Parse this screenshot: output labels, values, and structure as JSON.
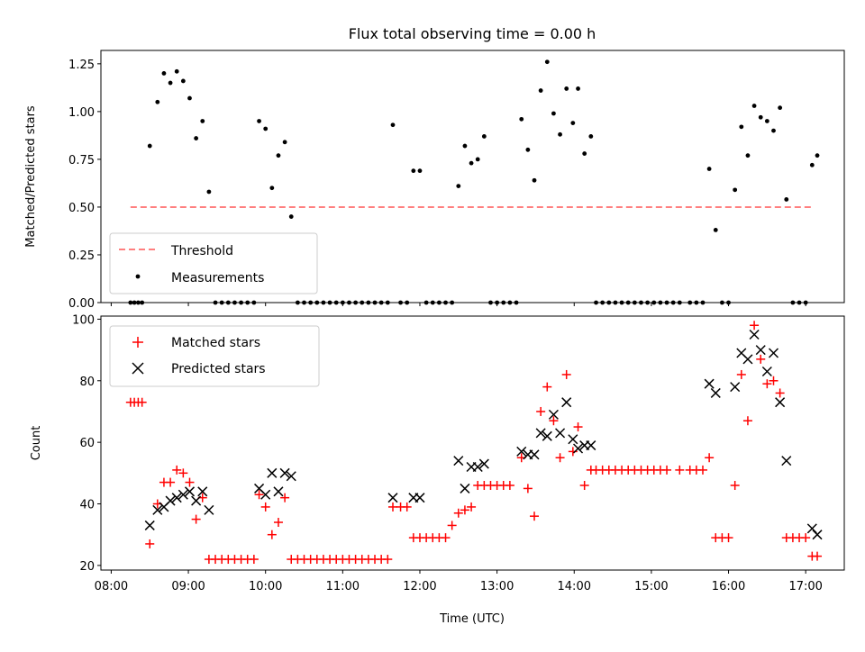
{
  "chart_data": [
    {
      "type": "scatter",
      "title": "Flux total observing time = 0.00 h",
      "xlabel": "",
      "ylabel": "Matched/Predicted stars",
      "xlim": [
        "07:52",
        "17:30"
      ],
      "ylim": [
        0,
        1.32
      ],
      "yticks": [
        "0.00",
        "0.25",
        "0.50",
        "0.75",
        "1.00",
        "1.25"
      ],
      "grid": false,
      "legend": "lower-left",
      "threshold": {
        "name": "Threshold",
        "value": 0.5,
        "x_start": "08:15",
        "x_end": "17:05",
        "color": "#ff7f7f"
      },
      "series": [
        {
          "name": "Measurements",
          "color": "#000000",
          "points": [
            [
              "08:15",
              0
            ],
            [
              "08:18",
              0
            ],
            [
              "08:21",
              0
            ],
            [
              "08:24",
              0
            ],
            [
              "08:30",
              0.82
            ],
            [
              "08:36",
              1.05
            ],
            [
              "08:41",
              1.2
            ],
            [
              "08:46",
              1.15
            ],
            [
              "08:51",
              1.21
            ],
            [
              "08:56",
              1.16
            ],
            [
              "09:01",
              1.07
            ],
            [
              "09:06",
              0.86
            ],
            [
              "09:11",
              0.95
            ],
            [
              "09:16",
              0.58
            ],
            [
              "09:21",
              0
            ],
            [
              "09:26",
              0
            ],
            [
              "09:31",
              0
            ],
            [
              "09:36",
              0
            ],
            [
              "09:41",
              0
            ],
            [
              "09:46",
              0
            ],
            [
              "09:51",
              0
            ],
            [
              "09:55",
              0.95
            ],
            [
              "10:00",
              0.91
            ],
            [
              "10:05",
              0.6
            ],
            [
              "10:10",
              0.77
            ],
            [
              "10:15",
              0.84
            ],
            [
              "10:20",
              0.45
            ],
            [
              "10:25",
              0
            ],
            [
              "10:30",
              0
            ],
            [
              "10:35",
              0
            ],
            [
              "10:40",
              0
            ],
            [
              "10:45",
              0
            ],
            [
              "10:50",
              0
            ],
            [
              "10:55",
              0
            ],
            [
              "11:00",
              0
            ],
            [
              "11:05",
              0
            ],
            [
              "11:10",
              0
            ],
            [
              "11:15",
              0
            ],
            [
              "11:20",
              0
            ],
            [
              "11:25",
              0
            ],
            [
              "11:30",
              0
            ],
            [
              "11:35",
              0
            ],
            [
              "11:39",
              0.93
            ],
            [
              "11:45",
              0
            ],
            [
              "11:50",
              0
            ],
            [
              "11:55",
              0.69
            ],
            [
              "12:00",
              0.69
            ],
            [
              "12:05",
              0
            ],
            [
              "12:10",
              0
            ],
            [
              "12:15",
              0
            ],
            [
              "12:20",
              0
            ],
            [
              "12:25",
              0
            ],
            [
              "12:30",
              0.61
            ],
            [
              "12:35",
              0.82
            ],
            [
              "12:40",
              0.73
            ],
            [
              "12:45",
              0.75
            ],
            [
              "12:50",
              0.87
            ],
            [
              "12:55",
              0
            ],
            [
              "13:00",
              0
            ],
            [
              "13:05",
              0
            ],
            [
              "13:10",
              0
            ],
            [
              "13:15",
              0
            ],
            [
              "13:19",
              0.96
            ],
            [
              "13:24",
              0.8
            ],
            [
              "13:29",
              0.64
            ],
            [
              "13:34",
              1.11
            ],
            [
              "13:39",
              1.26
            ],
            [
              "13:44",
              0.99
            ],
            [
              "13:49",
              0.88
            ],
            [
              "13:54",
              1.12
            ],
            [
              "13:59",
              0.94
            ],
            [
              "14:03",
              1.12
            ],
            [
              "14:08",
              0.78
            ],
            [
              "14:13",
              0.87
            ],
            [
              "14:17",
              0
            ],
            [
              "14:22",
              0
            ],
            [
              "14:27",
              0
            ],
            [
              "14:32",
              0
            ],
            [
              "14:37",
              0
            ],
            [
              "14:42",
              0
            ],
            [
              "14:47",
              0
            ],
            [
              "14:52",
              0
            ],
            [
              "14:57",
              0
            ],
            [
              "15:02",
              0
            ],
            [
              "15:07",
              0
            ],
            [
              "15:12",
              0
            ],
            [
              "15:17",
              0
            ],
            [
              "15:22",
              0
            ],
            [
              "15:30",
              0
            ],
            [
              "15:35",
              0
            ],
            [
              "15:40",
              0
            ],
            [
              "15:45",
              0.7
            ],
            [
              "15:50",
              0.38
            ],
            [
              "15:55",
              0
            ],
            [
              "16:00",
              0
            ],
            [
              "16:05",
              0.59
            ],
            [
              "16:10",
              0.92
            ],
            [
              "16:15",
              0.77
            ],
            [
              "16:20",
              1.03
            ],
            [
              "16:25",
              0.97
            ],
            [
              "16:30",
              0.95
            ],
            [
              "16:35",
              0.9
            ],
            [
              "16:40",
              1.02
            ],
            [
              "16:45",
              0.54
            ],
            [
              "16:50",
              0
            ],
            [
              "16:55",
              0
            ],
            [
              "17:00",
              0
            ],
            [
              "17:05",
              0.72
            ],
            [
              "17:09",
              0.77
            ]
          ]
        }
      ]
    },
    {
      "type": "scatter",
      "title": "",
      "xlabel": "Time (UTC)",
      "ylabel": "Count",
      "xlim": [
        "07:52",
        "17:30"
      ],
      "ylim": [
        18.5,
        101
      ],
      "yticks": [
        "20",
        "40",
        "60",
        "80",
        "100"
      ],
      "xticks": [
        "08:00",
        "09:00",
        "10:00",
        "11:00",
        "12:00",
        "13:00",
        "14:00",
        "15:00",
        "16:00",
        "17:00"
      ],
      "grid": false,
      "legend": "upper-left",
      "series": [
        {
          "name": "Matched stars",
          "marker": "+",
          "color": "#ff0000",
          "points": [
            [
              "08:15",
              73
            ],
            [
              "08:18",
              73
            ],
            [
              "08:21",
              73
            ],
            [
              "08:24",
              73
            ],
            [
              "08:30",
              27
            ],
            [
              "08:36",
              40
            ],
            [
              "08:41",
              47
            ],
            [
              "08:46",
              47
            ],
            [
              "08:51",
              51
            ],
            [
              "08:56",
              50
            ],
            [
              "09:01",
              47
            ],
            [
              "09:06",
              35
            ],
            [
              "09:11",
              42
            ],
            [
              "09:16",
              22
            ],
            [
              "09:21",
              22
            ],
            [
              "09:26",
              22
            ],
            [
              "09:31",
              22
            ],
            [
              "09:36",
              22
            ],
            [
              "09:41",
              22
            ],
            [
              "09:46",
              22
            ],
            [
              "09:51",
              22
            ],
            [
              "09:55",
              43
            ],
            [
              "10:00",
              39
            ],
            [
              "10:05",
              30
            ],
            [
              "10:10",
              34
            ],
            [
              "10:15",
              42
            ],
            [
              "10:20",
              22
            ],
            [
              "10:25",
              22
            ],
            [
              "10:30",
              22
            ],
            [
              "10:35",
              22
            ],
            [
              "10:40",
              22
            ],
            [
              "10:45",
              22
            ],
            [
              "10:50",
              22
            ],
            [
              "10:55",
              22
            ],
            [
              "11:00",
              22
            ],
            [
              "11:05",
              22
            ],
            [
              "11:10",
              22
            ],
            [
              "11:15",
              22
            ],
            [
              "11:20",
              22
            ],
            [
              "11:25",
              22
            ],
            [
              "11:30",
              22
            ],
            [
              "11:35",
              22
            ],
            [
              "11:39",
              39
            ],
            [
              "11:45",
              39
            ],
            [
              "11:50",
              39
            ],
            [
              "11:55",
              29
            ],
            [
              "12:00",
              29
            ],
            [
              "12:05",
              29
            ],
            [
              "12:10",
              29
            ],
            [
              "12:15",
              29
            ],
            [
              "12:20",
              29
            ],
            [
              "12:25",
              33
            ],
            [
              "12:30",
              37
            ],
            [
              "12:35",
              38
            ],
            [
              "12:40",
              39
            ],
            [
              "12:45",
              46
            ],
            [
              "12:50",
              46
            ],
            [
              "12:55",
              46
            ],
            [
              "13:00",
              46
            ],
            [
              "13:05",
              46
            ],
            [
              "13:10",
              46
            ],
            [
              "13:19",
              55
            ],
            [
              "13:24",
              45
            ],
            [
              "13:29",
              36
            ],
            [
              "13:34",
              70
            ],
            [
              "13:39",
              78
            ],
            [
              "13:44",
              67
            ],
            [
              "13:49",
              55
            ],
            [
              "13:54",
              82
            ],
            [
              "13:59",
              57
            ],
            [
              "14:03",
              65
            ],
            [
              "14:08",
              46
            ],
            [
              "14:13",
              51
            ],
            [
              "14:17",
              51
            ],
            [
              "14:22",
              51
            ],
            [
              "14:27",
              51
            ],
            [
              "14:32",
              51
            ],
            [
              "14:37",
              51
            ],
            [
              "14:42",
              51
            ],
            [
              "14:47",
              51
            ],
            [
              "14:52",
              51
            ],
            [
              "14:57",
              51
            ],
            [
              "15:02",
              51
            ],
            [
              "15:07",
              51
            ],
            [
              "15:12",
              51
            ],
            [
              "15:22",
              51
            ],
            [
              "15:30",
              51
            ],
            [
              "15:35",
              51
            ],
            [
              "15:40",
              51
            ],
            [
              "15:45",
              55
            ],
            [
              "15:50",
              29
            ],
            [
              "15:55",
              29
            ],
            [
              "16:00",
              29
            ],
            [
              "16:05",
              46
            ],
            [
              "16:10",
              82
            ],
            [
              "16:15",
              67
            ],
            [
              "16:20",
              98
            ],
            [
              "16:25",
              87
            ],
            [
              "16:30",
              79
            ],
            [
              "16:35",
              80
            ],
            [
              "16:40",
              76
            ],
            [
              "16:45",
              29
            ],
            [
              "16:50",
              29
            ],
            [
              "16:55",
              29
            ],
            [
              "17:00",
              29
            ],
            [
              "17:05",
              23
            ],
            [
              "17:09",
              23
            ]
          ]
        },
        {
          "name": "Predicted stars",
          "marker": "x",
          "color": "#000000",
          "points": [
            [
              "08:30",
              33
            ],
            [
              "08:36",
              38
            ],
            [
              "08:41",
              39
            ],
            [
              "08:46",
              41
            ],
            [
              "08:51",
              42
            ],
            [
              "08:56",
              43
            ],
            [
              "09:01",
              44
            ],
            [
              "09:06",
              41
            ],
            [
              "09:11",
              44
            ],
            [
              "09:16",
              38
            ],
            [
              "09:55",
              45
            ],
            [
              "10:00",
              43
            ],
            [
              "10:05",
              50
            ],
            [
              "10:10",
              44
            ],
            [
              "10:15",
              50
            ],
            [
              "10:20",
              49
            ],
            [
              "11:39",
              42
            ],
            [
              "11:55",
              42
            ],
            [
              "12:00",
              42
            ],
            [
              "12:30",
              54
            ],
            [
              "12:35",
              45
            ],
            [
              "12:40",
              52
            ],
            [
              "12:45",
              52
            ],
            [
              "12:50",
              53
            ],
            [
              "13:19",
              57
            ],
            [
              "13:24",
              56
            ],
            [
              "13:29",
              56
            ],
            [
              "13:34",
              63
            ],
            [
              "13:39",
              62
            ],
            [
              "13:44",
              69
            ],
            [
              "13:49",
              63
            ],
            [
              "13:54",
              73
            ],
            [
              "13:59",
              61
            ],
            [
              "14:03",
              58
            ],
            [
              "14:08",
              59
            ],
            [
              "14:13",
              59
            ],
            [
              "15:45",
              79
            ],
            [
              "15:50",
              76
            ],
            [
              "16:05",
              78
            ],
            [
              "16:10",
              89
            ],
            [
              "16:15",
              87
            ],
            [
              "16:20",
              95
            ],
            [
              "16:25",
              90
            ],
            [
              "16:30",
              83
            ],
            [
              "16:35",
              89
            ],
            [
              "16:40",
              73
            ],
            [
              "16:45",
              54
            ],
            [
              "17:05",
              32
            ],
            [
              "17:09",
              30
            ]
          ]
        }
      ]
    }
  ]
}
